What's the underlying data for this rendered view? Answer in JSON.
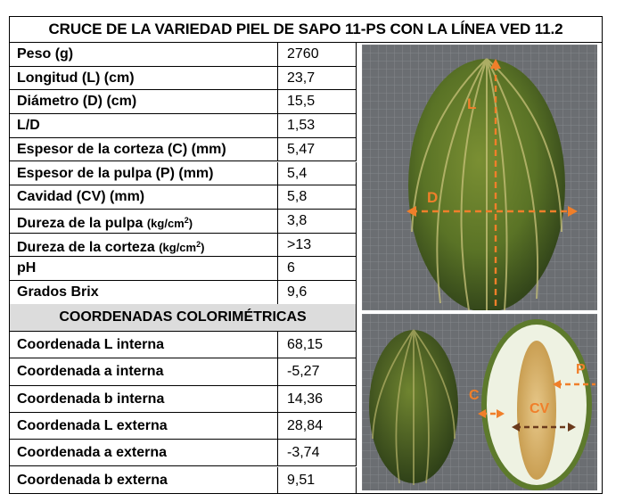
{
  "title": "CRUCE DE LA VARIEDAD PIEL DE SAPO 11-PS CON LA LÍNEA VED 11.2",
  "properties": [
    {
      "label": "Peso (g)",
      "value": "2760"
    },
    {
      "label": "Longitud (L) (cm)",
      "value": "23,7"
    },
    {
      "label": "Diámetro (D) (cm)",
      "value": "15,5"
    },
    {
      "label": "L/D",
      "value": "1,53"
    },
    {
      "label": "Espesor de la corteza (C) (mm)",
      "value": "5,47"
    },
    {
      "label": "Espesor de la pulpa (P) (mm)",
      "value": "5,4"
    },
    {
      "label": "Cavidad (CV) (mm)",
      "value": "5,8"
    },
    {
      "label": "Dureza de la pulpa",
      "unit": "(kg/cm",
      "sup": "2",
      "unit_close": ")",
      "value": "3,8"
    },
    {
      "label": "Dureza de la corteza",
      "unit": "(kg/cm",
      "sup": "2",
      "unit_close": ")",
      "value": ">13"
    },
    {
      "label": "pH",
      "value": "6"
    },
    {
      "label": "Grados Brix",
      "value": "9,6"
    }
  ],
  "section_title": "COORDENADAS COLORIMÉTRICAS",
  "coordinates": [
    {
      "label": "Coordenada L interna",
      "value": "68,15"
    },
    {
      "label": "Coordenada a interna",
      "value": "-5,27"
    },
    {
      "label": "Coordenada b interna",
      "value": "14,36"
    },
    {
      "label": "Coordenada L externa",
      "value": "28,84"
    },
    {
      "label": "Coordenada a externa",
      "value": "-3,74"
    },
    {
      "label": "Coordenada b externa",
      "value": "9,51"
    }
  ],
  "photo_labels": {
    "length": "L",
    "diameter": "D",
    "rind": "C",
    "cavity": "CV",
    "pulp": "P"
  },
  "colors": {
    "annotation": "#f07f2a",
    "grid_background": "#6b6e72",
    "melon_green": "#4f6a22",
    "flesh": "#eef2e2",
    "header_shading": "#dcdcdc"
  }
}
